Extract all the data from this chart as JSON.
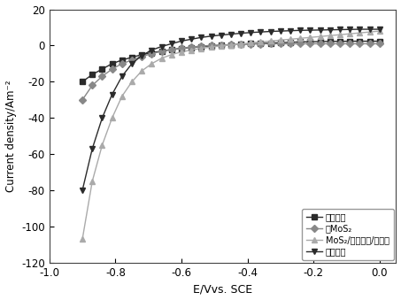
{
  "xlabel": "E/Vvs. SCE",
  "ylabel": "Current density/Am⁻²",
  "xlim": [
    -1.0,
    0.05
  ],
  "ylim": [
    -120,
    20
  ],
  "xticks": [
    -1.0,
    -0.8,
    -0.6,
    -0.4,
    -0.2,
    0.0
  ],
  "yticks": [
    -120,
    -100,
    -80,
    -60,
    -40,
    -20,
    0,
    20
  ],
  "series": [
    {
      "label": "空白碳纸",
      "color": "#2b2b2b",
      "marker": "s",
      "markersize": 4,
      "linestyle": "-",
      "linewidth": 1.0,
      "x": [
        -0.9,
        -0.87,
        -0.84,
        -0.81,
        -0.78,
        -0.75,
        -0.72,
        -0.69,
        -0.66,
        -0.63,
        -0.6,
        -0.57,
        -0.54,
        -0.51,
        -0.48,
        -0.45,
        -0.42,
        -0.39,
        -0.36,
        -0.33,
        -0.3,
        -0.27,
        -0.24,
        -0.21,
        -0.18,
        -0.15,
        -0.12,
        -0.09,
        -0.06,
        -0.03,
        0.0
      ],
      "y": [
        -20,
        -16,
        -13,
        -10,
        -8,
        -6.5,
        -5,
        -4,
        -3,
        -2.2,
        -1.6,
        -1.0,
        -0.5,
        -0.2,
        0.1,
        0.4,
        0.7,
        1.0,
        1.2,
        1.4,
        1.6,
        1.8,
        2.0,
        2.1,
        2.2,
        2.3,
        2.3,
        2.4,
        2.4,
        2.4,
        2.4
      ]
    },
    {
      "label": "纯MoS₂",
      "color": "#888888",
      "marker": "D",
      "markersize": 4,
      "linestyle": "-",
      "linewidth": 1.0,
      "x": [
        -0.9,
        -0.87,
        -0.84,
        -0.81,
        -0.78,
        -0.75,
        -0.72,
        -0.69,
        -0.66,
        -0.63,
        -0.6,
        -0.57,
        -0.54,
        -0.51,
        -0.48,
        -0.45,
        -0.42,
        -0.39,
        -0.36,
        -0.33,
        -0.3,
        -0.27,
        -0.24,
        -0.21,
        -0.18,
        -0.15,
        -0.12,
        -0.09,
        -0.06,
        -0.03,
        0.0
      ],
      "y": [
        -30,
        -22,
        -17,
        -13,
        -10,
        -8,
        -6,
        -4.5,
        -3.2,
        -2.2,
        -1.4,
        -0.8,
        -0.3,
        0.1,
        0.3,
        0.5,
        0.7,
        0.8,
        0.9,
        1.0,
        1.0,
        1.0,
        1.0,
        1.0,
        1.0,
        1.0,
        1.0,
        1.0,
        1.0,
        1.0,
        1.0
      ]
    },
    {
      "label": "MoS₂/过渡金属/石墨烯",
      "color": "#aaaaaa",
      "marker": "^",
      "markersize": 5,
      "linestyle": "-",
      "linewidth": 1.0,
      "x": [
        -0.9,
        -0.87,
        -0.84,
        -0.81,
        -0.78,
        -0.75,
        -0.72,
        -0.69,
        -0.66,
        -0.63,
        -0.6,
        -0.57,
        -0.54,
        -0.51,
        -0.48,
        -0.45,
        -0.42,
        -0.39,
        -0.36,
        -0.33,
        -0.3,
        -0.27,
        -0.24,
        -0.21,
        -0.18,
        -0.15,
        -0.12,
        -0.09,
        -0.06,
        -0.03,
        0.0
      ],
      "y": [
        -107,
        -75,
        -55,
        -40,
        -28,
        -20,
        -14,
        -10,
        -7,
        -5,
        -3.5,
        -2.5,
        -1.5,
        -0.8,
        -0.2,
        0.3,
        0.8,
        1.5,
        2.0,
        2.5,
        3.0,
        3.5,
        4.0,
        4.5,
        5.0,
        5.5,
        6.0,
        6.5,
        7.0,
        7.5,
        8.0
      ]
    },
    {
      "label": "载锃碳纸",
      "color": "#2b2b2b",
      "marker": "v",
      "markersize": 5,
      "linestyle": "-",
      "linewidth": 1.0,
      "x": [
        -0.9,
        -0.87,
        -0.84,
        -0.81,
        -0.78,
        -0.75,
        -0.72,
        -0.69,
        -0.66,
        -0.63,
        -0.6,
        -0.57,
        -0.54,
        -0.51,
        -0.48,
        -0.45,
        -0.42,
        -0.39,
        -0.36,
        -0.33,
        -0.3,
        -0.27,
        -0.24,
        -0.21,
        -0.18,
        -0.15,
        -0.12,
        -0.09,
        -0.06,
        -0.03,
        0.0
      ],
      "y": [
        -80,
        -57,
        -40,
        -27,
        -17,
        -10,
        -5.5,
        -2.5,
        -0.5,
        1.0,
        2.5,
        3.5,
        4.5,
        5.2,
        5.8,
        6.3,
        6.8,
        7.2,
        7.5,
        7.8,
        8.0,
        8.2,
        8.4,
        8.5,
        8.6,
        8.7,
        8.8,
        8.9,
        9.0,
        9.0,
        9.0
      ]
    }
  ],
  "legend_labels": [
    "空白碳纸",
    "纯MoS₂",
    "MoS₂/过渡金属/石墨烯",
    "载锃碳纸"
  ],
  "background_color": "#ffffff"
}
